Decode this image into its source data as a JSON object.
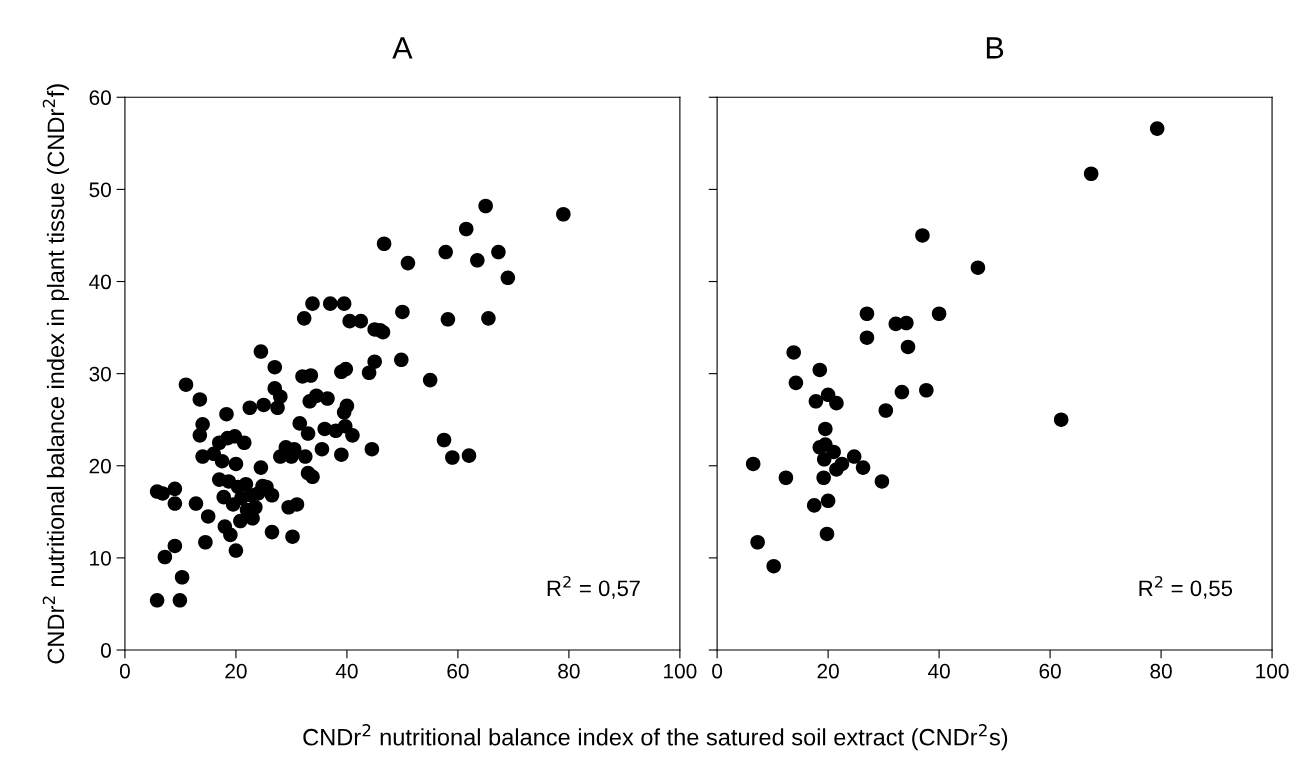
{
  "chart_data": [
    {
      "type": "scatter",
      "title": "A",
      "ylabel": "CNDr$^{2}$ nutritional balance index in plant tissue (CNDr$^{2}$f)",
      "xlabel": "CNDr$^{2}$ nutritional balance index of the satured soil extract (CNDr$^{2}$s)",
      "annotations": [
        "R$^{2}$ = 0,57"
      ],
      "marker": "circle",
      "xlim": [
        0,
        100
      ],
      "ylim": [
        0,
        60
      ],
      "xticks": [
        0,
        20,
        40,
        60,
        80,
        100
      ],
      "yticks": [
        0,
        10,
        20,
        30,
        40,
        50,
        60
      ],
      "grid": false,
      "legend": false,
      "series": [
        {
          "color": "#000000",
          "x": [
            5.8,
            9.9,
            10.3,
            7.2,
            9,
            5.8,
            6.8,
            9,
            9,
            12.8,
            11,
            13.5,
            14,
            13.5,
            14,
            14.5,
            15,
            16,
            17,
            17,
            17.5,
            17.8,
            18,
            18.3,
            18.5,
            18.7,
            19,
            19.5,
            19.8,
            20,
            20,
            20.4,
            20.8,
            21,
            21.5,
            21.8,
            22,
            22.5,
            22.7,
            23,
            23.5,
            24,
            24.5,
            24.5,
            24.8,
            25,
            25.5,
            26.5,
            26.5,
            27,
            27,
            27.5,
            28,
            28,
            29,
            29.5,
            30,
            30.2,
            30.5,
            31,
            31.5,
            32,
            32.3,
            32.5,
            33,
            33,
            33.3,
            33.5,
            33.8,
            33.8,
            34.5,
            35.5,
            36,
            36.5,
            37,
            38,
            39,
            39.5,
            39,
            39.5,
            39.7,
            39.8,
            40,
            40.5,
            41,
            42.5,
            44,
            44.5,
            45,
            45,
            46,
            46.5,
            46.7,
            49.8,
            50,
            51,
            55,
            57.5,
            57.8,
            58.2,
            59,
            61.5,
            62,
            63.5,
            65,
            65.5,
            67.3,
            69,
            79
          ],
          "values": [
            5.4,
            5.4,
            7.9,
            10.1,
            11.3,
            17.2,
            17,
            17.5,
            15.9,
            15.9,
            28.8,
            27.2,
            24.5,
            23.3,
            21,
            11.7,
            14.5,
            21.3,
            18.5,
            22.5,
            20.5,
            16.6,
            13.4,
            25.6,
            23,
            18.3,
            12.5,
            15.8,
            23.2,
            20.2,
            10.8,
            17.7,
            14,
            16.5,
            22.5,
            18,
            15.2,
            26.3,
            16.8,
            14.3,
            15.5,
            17,
            32.4,
            19.8,
            17.8,
            26.6,
            17.7,
            16.8,
            12.8,
            30.7,
            28.4,
            26.3,
            27.5,
            21,
            22,
            15.5,
            21,
            12.3,
            21.8,
            15.8,
            24.6,
            29.7,
            36,
            21,
            19.2,
            23.5,
            27,
            29.8,
            37.6,
            18.8,
            27.6,
            21.8,
            24,
            27.3,
            37.6,
            23.8,
            21.2,
            37.6,
            30.2,
            25.8,
            24.3,
            30.5,
            26.5,
            35.7,
            23.3,
            35.7,
            30.1,
            21.8,
            31.3,
            34.8,
            34.7,
            34.5,
            44.1,
            31.5,
            36.7,
            42,
            29.3,
            22.8,
            43.2,
            35.9,
            20.9,
            45.7,
            21.1,
            42.3,
            48.2,
            36,
            43.2,
            40.4,
            47.3
          ]
        }
      ]
    },
    {
      "type": "scatter",
      "title": "B",
      "annotations": [
        "R$^{2}$ = 0,55"
      ],
      "marker": "circle",
      "xlim": [
        0,
        100
      ],
      "ylim": [
        0,
        60
      ],
      "xticks": [
        0,
        20,
        40,
        60,
        80,
        100
      ],
      "yticks": [
        0,
        10,
        20,
        30,
        40,
        50,
        60
      ],
      "tick_labels": "x",
      "grid": false,
      "legend": false,
      "series": [
        {
          "color": "#000000",
          "x": [
            6.5,
            7.3,
            10.2,
            12.4,
            13.8,
            14.2,
            17.5,
            17.8,
            18.5,
            18.5,
            19.3,
            19.2,
            19.5,
            19.5,
            20,
            20,
            19.8,
            21,
            21.5,
            21.5,
            22.5,
            24.7,
            26.3,
            27,
            27,
            29.7,
            30.4,
            32.2,
            33.3,
            34.1,
            34.4,
            37,
            37.7,
            40,
            47,
            62,
            67.4,
            79.3
          ],
          "values": [
            20.2,
            11.7,
            9.1,
            18.7,
            32.3,
            29,
            15.7,
            27,
            30.4,
            22,
            20.7,
            18.7,
            22.3,
            24,
            27.7,
            16.2,
            12.6,
            21.5,
            26.8,
            19.6,
            20.2,
            21,
            19.8,
            36.5,
            33.9,
            18.3,
            26,
            35.4,
            28,
            35.5,
            32.9,
            45,
            28.2,
            36.5,
            41.5,
            25,
            51.7,
            56.6
          ]
        }
      ]
    }
  ]
}
